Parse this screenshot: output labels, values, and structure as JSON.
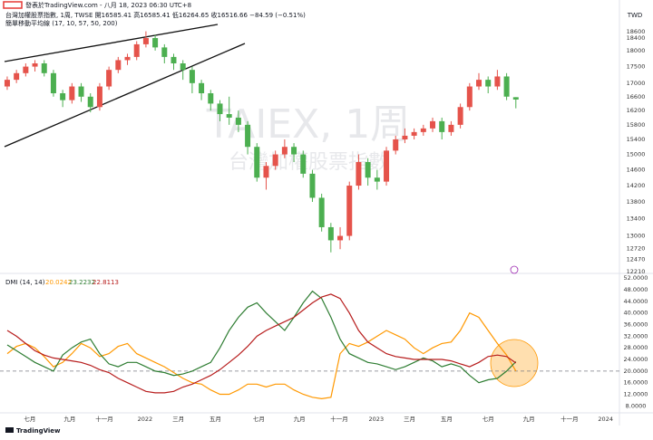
{
  "chart_data": [
    {
      "type": "candlestick",
      "header": [
        "發表於TradingView.com - 八月 18, 2023 06:30 UTC+8",
        "台灣加權股票指數, 1周, TWSE  開16585.41 高16585.41 低16264.65 收16516.66 −84.59 (−0.51%)",
        "簡單移動平均線 (17, 10, 57, 50, 200)"
      ],
      "currency": "TWD",
      "watermark": [
        "TAIEX, 1周",
        "台灣加權股票指數"
      ],
      "source": "TradingView",
      "up_color": "#e5534b",
      "down_color": "#4caf50",
      "log_scale": true,
      "ylim": [
        12210,
        19300
      ],
      "yticks": [
        18600,
        18400,
        18000,
        17500,
        17000,
        16600,
        16200,
        15800,
        15400,
        15000,
        14600,
        14200,
        13800,
        13400,
        13000,
        12720,
        12470,
        12210
      ],
      "xlim": [
        -0.78,
        66.2
      ],
      "xticks": [
        {
          "value": 2.45,
          "label": "七月"
        },
        {
          "value": 6.76,
          "label": "九月"
        },
        {
          "value": 10.5,
          "label": "十一月"
        },
        {
          "value": 14.9,
          "label": "2022"
        },
        {
          "value": 18.5,
          "label": "三月"
        },
        {
          "value": 22.5,
          "label": "五月"
        },
        {
          "value": 27.2,
          "label": "七月"
        },
        {
          "value": 31.6,
          "label": "九月"
        },
        {
          "value": 35.9,
          "label": "十一月"
        },
        {
          "value": 39.9,
          "label": "2023"
        },
        {
          "value": 43.5,
          "label": "三月"
        },
        {
          "value": 47.5,
          "label": "五月"
        },
        {
          "value": 52,
          "label": "七月"
        },
        {
          "value": 56.4,
          "label": "九月"
        },
        {
          "value": 60.8,
          "label": "十一月"
        },
        {
          "value": 64.7,
          "label": "2024"
        }
      ],
      "open": [
        16900,
        17100,
        17300,
        17500,
        17600,
        17300,
        16700,
        16500,
        16900,
        16600,
        16300,
        16900,
        17400,
        17700,
        17800,
        18200,
        18400,
        18100,
        17800,
        17600,
        17400,
        17000,
        16700,
        16400,
        16100,
        16000,
        15800,
        15200,
        14400,
        14700,
        15000,
        15200,
        15000,
        14500,
        13900,
        13200,
        12900,
        13000,
        14200,
        14800,
        14400,
        14300,
        15100,
        15400,
        15500,
        15600,
        15700,
        15900,
        15600,
        15800,
        16300,
        16900,
        17100,
        16900,
        17200,
        16585.41
      ],
      "high": [
        17200,
        17400,
        17600,
        17700,
        17700,
        17400,
        16800,
        17000,
        17000,
        16700,
        17000,
        17500,
        17800,
        17900,
        18300,
        18620,
        18500,
        18200,
        17900,
        17700,
        17500,
        17100,
        16800,
        16500,
        16600,
        16200,
        15900,
        15300,
        14800,
        15100,
        15400,
        15300,
        15100,
        14600,
        14000,
        13300,
        13200,
        14300,
        15000,
        14900,
        14600,
        15200,
        15500,
        15700,
        15700,
        15800,
        16000,
        16000,
        15900,
        16400,
        17000,
        17300,
        17200,
        17400,
        17300,
        16585.41
      ],
      "low": [
        16800,
        17000,
        17200,
        17350,
        17200,
        16600,
        16300,
        16400,
        16450,
        16150,
        16200,
        16800,
        17300,
        17550,
        17700,
        18100,
        18000,
        17600,
        17400,
        17100,
        16700,
        16500,
        16200,
        15900,
        15800,
        15600,
        15000,
        14300,
        14100,
        14600,
        14900,
        14800,
        14400,
        13800,
        13100,
        12630,
        12700,
        12900,
        14100,
        14200,
        14100,
        14200,
        15000,
        15300,
        15400,
        15500,
        15600,
        15400,
        15500,
        15700,
        16200,
        16800,
        16700,
        16800,
        16500,
        16264.65
      ],
      "close": [
        17100,
        17300,
        17500,
        17600,
        17300,
        16700,
        16500,
        16900,
        16600,
        16300,
        16900,
        17400,
        17700,
        17800,
        18200,
        18400,
        18100,
        17800,
        17600,
        17400,
        17000,
        16700,
        16400,
        16100,
        16000,
        15800,
        15200,
        14400,
        14700,
        15000,
        15200,
        15000,
        14500,
        13900,
        13200,
        12900,
        13000,
        14200,
        14800,
        14400,
        14300,
        15100,
        15400,
        15500,
        15600,
        15700,
        15900,
        15600,
        15800,
        16300,
        16900,
        17100,
        16900,
        17200,
        16601.25,
        16516.66
      ]
    },
    {
      "type": "line",
      "title": "DMI (14, 14)",
      "legend_values": [
        "20.0242",
        "23.2232",
        "22.8113"
      ],
      "ylim": [
        5,
        53
      ],
      "yticks": [
        {
          "value": 52,
          "label": "52.0000"
        },
        {
          "value": 48,
          "label": "48.0000"
        },
        {
          "value": 44,
          "label": "44.0000"
        },
        {
          "value": 40,
          "label": "40.0000"
        },
        {
          "value": 36,
          "label": "36.0000"
        },
        {
          "value": 32,
          "label": "32.0000"
        },
        {
          "value": 28,
          "label": "28.0000"
        },
        {
          "value": 24,
          "label": "24.0000"
        },
        {
          "value": 20,
          "label": "20.0000"
        },
        {
          "value": 16,
          "label": "16.0000"
        },
        {
          "value": 12,
          "label": "12.0000"
        },
        {
          "value": 8,
          "label": "8.0000"
        }
      ],
      "hline": 20,
      "series": [
        {
          "color": "#ff9800",
          "values": [
            26,
            28.5,
            29.5,
            28,
            25,
            21.5,
            23,
            26,
            29.5,
            28,
            25,
            26,
            28.5,
            29.5,
            26,
            24.5,
            23,
            21.5,
            19.5,
            17.5,
            16,
            15.5,
            13.5,
            12,
            12,
            13.5,
            15.5,
            15.5,
            14.5,
            15.5,
            15.5,
            13.5,
            12,
            11,
            10.5,
            11,
            26,
            29.5,
            28.5,
            30,
            32,
            34,
            32.5,
            31,
            28,
            26,
            28,
            29.5,
            30,
            34,
            40,
            38.5,
            34,
            29.5,
            25.5,
            20.0242
          ]
        },
        {
          "color": "#2e7d32",
          "values": [
            29,
            27,
            25,
            23,
            21.5,
            20,
            25.5,
            28,
            30,
            31,
            26,
            22.5,
            21.5,
            23,
            23,
            21.5,
            20,
            19.5,
            18.5,
            19,
            20,
            21.5,
            23,
            28,
            34,
            38.5,
            42,
            43.5,
            40,
            37,
            34,
            38.5,
            43.5,
            47.5,
            45,
            38.5,
            31,
            26,
            24.5,
            23,
            22.5,
            21.5,
            20.5,
            21.5,
            23,
            24.5,
            23.5,
            21.5,
            22.5,
            21.5,
            18.5,
            16,
            17,
            17.5,
            20,
            23.2232
          ]
        },
        {
          "color": "#b71c1c",
          "values": [
            34,
            32,
            29.5,
            27,
            25.5,
            24.5,
            24,
            23.5,
            23,
            22,
            20.5,
            19.5,
            17.5,
            16,
            14.5,
            13,
            12.5,
            12.5,
            13,
            14.5,
            15.5,
            17,
            18.5,
            20.5,
            23,
            25.5,
            28.5,
            32,
            34,
            35.5,
            37,
            38.5,
            41,
            43.5,
            45.5,
            46.5,
            45,
            40,
            34,
            30,
            28,
            26,
            25,
            24.5,
            24,
            24,
            24,
            24,
            23.5,
            22.5,
            21.5,
            23,
            25,
            25.5,
            25,
            22.8113
          ]
        }
      ]
    }
  ]
}
